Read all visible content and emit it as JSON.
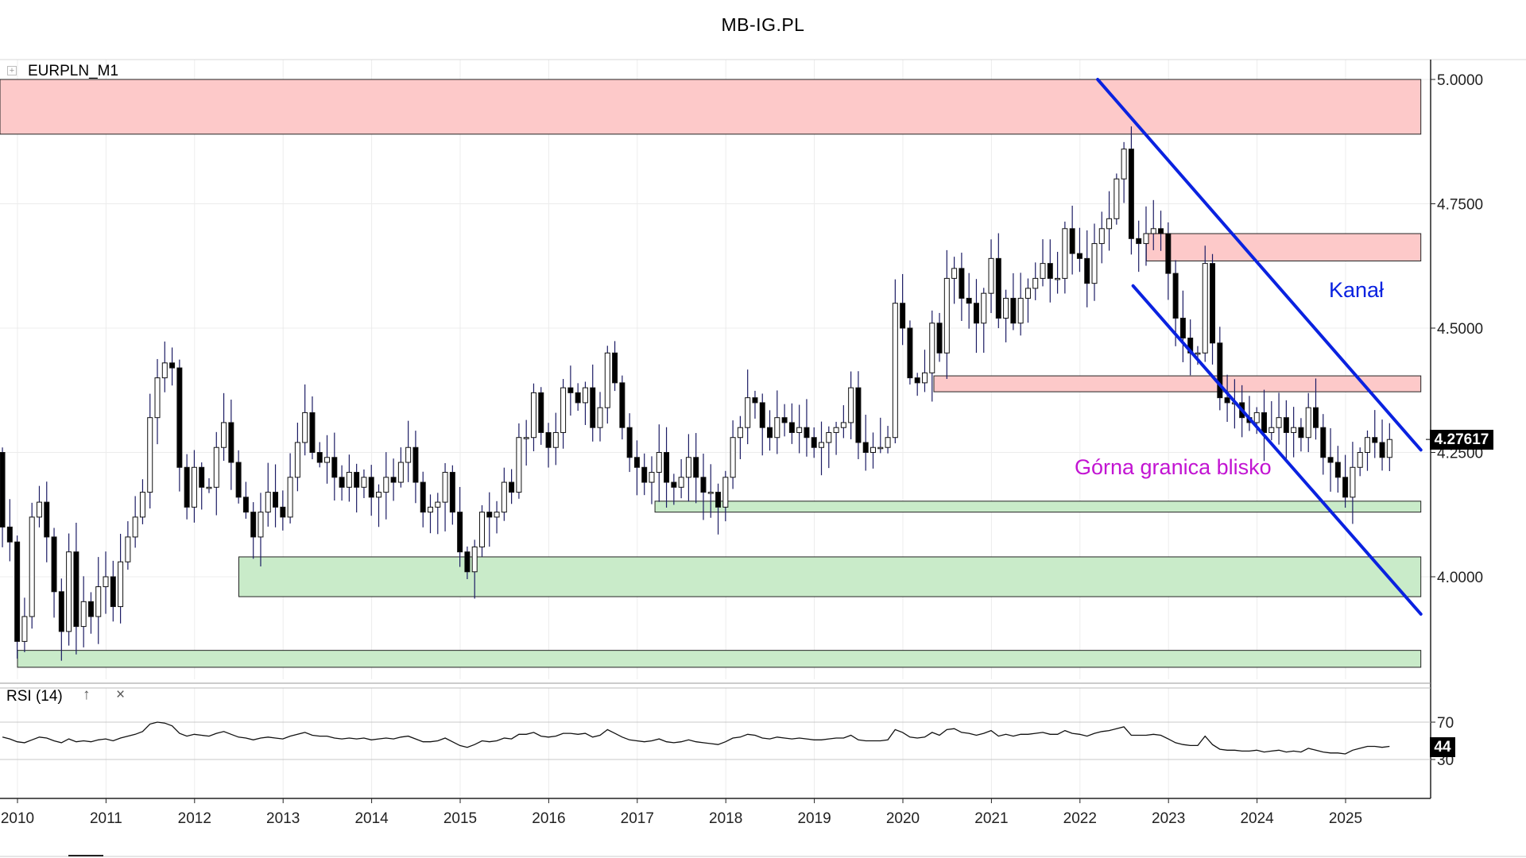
{
  "page_title": "MB-IG.PL",
  "symbol": {
    "label": "EURPLN_M1",
    "toggle_glyph": "+"
  },
  "current_price": "4.27617",
  "rsi": {
    "label": "RSI (14)",
    "up_glyph": "↑",
    "close_glyph": "×",
    "current_value": "44",
    "levels": [
      "70",
      "30"
    ]
  },
  "annotations": {
    "channel_label": "Kanał",
    "upper_bound_label": "Górna granica blisko"
  },
  "colors": {
    "resistance_zone": "#fdc9c9",
    "support_zone": "#c9ebc9",
    "channel_line": "#0a22e0",
    "upper_bound_text": "#c214d2",
    "candle_up": "#ffffff",
    "candle_down": "#000000",
    "wick": "#1c1c64"
  },
  "chart_data": {
    "type": "candlestick",
    "instrument": "EURPLN",
    "timeframe": "M1",
    "y_ticks": [
      "5.0000",
      "4.7500",
      "4.5000",
      "4.2500",
      "4.0000"
    ],
    "y_range": [
      3.8,
      5.04
    ],
    "x_ticks": [
      "2010",
      "2011",
      "2012",
      "2013",
      "2014",
      "2015",
      "2016",
      "2017",
      "2018",
      "2019",
      "2020",
      "2021",
      "2022",
      "2023",
      "2024",
      "2025"
    ],
    "x_range": [
      2009.88,
      2025.85
    ],
    "grid": true,
    "legend": "none",
    "resistance_zones": [
      {
        "from_x": 2009.8,
        "to_x": 2025.85,
        "low": 4.89,
        "high": 5.0
      },
      {
        "from_x": 2022.75,
        "to_x": 2025.85,
        "low": 4.635,
        "high": 4.69
      },
      {
        "from_x": 2020.35,
        "to_x": 2025.85,
        "low": 4.372,
        "high": 4.404
      }
    ],
    "support_zones": [
      {
        "from_x": 2017.2,
        "to_x": 2025.85,
        "low": 4.13,
        "high": 4.152
      },
      {
        "from_x": 2012.5,
        "to_x": 2025.85,
        "low": 3.96,
        "high": 4.04
      },
      {
        "from_x": 2010.0,
        "to_x": 2025.85,
        "low": 3.818,
        "high": 3.852
      }
    ],
    "channel_lines": [
      {
        "name": "upper",
        "points": [
          [
            2022.2,
            5.0
          ],
          [
            2025.85,
            4.255
          ]
        ]
      },
      {
        "name": "lower",
        "points": [
          [
            2022.6,
            4.585
          ],
          [
            2025.85,
            3.925
          ]
        ]
      }
    ],
    "monthly_close": [
      4.1,
      4.07,
      3.87,
      3.92,
      4.12,
      4.15,
      4.08,
      3.97,
      3.89,
      4.05,
      3.9,
      3.95,
      3.92,
      3.98,
      4.0,
      3.94,
      4.03,
      4.08,
      4.12,
      4.17,
      4.32,
      4.4,
      4.43,
      4.42,
      4.22,
      4.14,
      4.22,
      4.18,
      4.18,
      4.26,
      4.31,
      4.23,
      4.16,
      4.13,
      4.08,
      4.13,
      4.17,
      4.14,
      4.12,
      4.2,
      4.27,
      4.33,
      4.25,
      4.23,
      4.24,
      4.2,
      4.18,
      4.21,
      4.18,
      4.2,
      4.16,
      4.17,
      4.2,
      4.19,
      4.23,
      4.26,
      4.19,
      4.13,
      4.14,
      4.15,
      4.21,
      4.13,
      4.05,
      4.01,
      4.06,
      4.13,
      4.12,
      4.13,
      4.19,
      4.17,
      4.28,
      4.28,
      4.37,
      4.29,
      4.26,
      4.29,
      4.38,
      4.37,
      4.35,
      4.38,
      4.3,
      4.34,
      4.45,
      4.39,
      4.3,
      4.24,
      4.22,
      4.19,
      4.21,
      4.25,
      4.19,
      4.18,
      4.2,
      4.24,
      4.2,
      4.17,
      4.17,
      4.14,
      4.2,
      4.28,
      4.3,
      4.36,
      4.35,
      4.3,
      4.28,
      4.32,
      4.31,
      4.29,
      4.3,
      4.28,
      4.26,
      4.27,
      4.29,
      4.3,
      4.31,
      4.38,
      4.27,
      4.25,
      4.26,
      4.26,
      4.28,
      4.55,
      4.5,
      4.4,
      4.39,
      4.41,
      4.51,
      4.45,
      4.6,
      4.62,
      4.56,
      4.55,
      4.51,
      4.57,
      4.64,
      4.52,
      4.56,
      4.51,
      4.56,
      4.58,
      4.6,
      4.63,
      4.6,
      4.6,
      4.7,
      4.65,
      4.64,
      4.59,
      4.67,
      4.7,
      4.72,
      4.8,
      4.86,
      4.68,
      4.67,
      4.69,
      4.7,
      4.69,
      4.61,
      4.52,
      4.48,
      4.45,
      4.45,
      4.63,
      4.47,
      4.36,
      4.35,
      4.35,
      4.32,
      4.31,
      4.33,
      4.29,
      4.3,
      4.32,
      4.29,
      4.3,
      4.28,
      4.34,
      4.3,
      4.24,
      4.23,
      4.2,
      4.16,
      4.22,
      4.25,
      4.28,
      4.27,
      4.24,
      4.276
    ],
    "rsi_series": [
      54,
      52,
      49,
      48,
      51,
      54,
      53,
      50,
      48,
      52,
      49,
      50,
      49,
      51,
      52,
      50,
      53,
      55,
      57,
      60,
      68,
      70,
      69,
      66,
      58,
      55,
      57,
      56,
      55,
      58,
      60,
      57,
      54,
      53,
      51,
      53,
      54,
      53,
      52,
      55,
      57,
      59,
      56,
      55,
      55,
      53,
      52,
      53,
      52,
      53,
      51,
      52,
      53,
      52,
      54,
      55,
      52,
      49,
      49,
      50,
      53,
      49,
      45,
      43,
      46,
      50,
      49,
      50,
      53,
      52,
      57,
      57,
      59,
      55,
      54,
      55,
      58,
      58,
      57,
      58,
      54,
      56,
      62,
      58,
      54,
      51,
      50,
      49,
      50,
      52,
      49,
      48,
      49,
      51,
      49,
      48,
      47,
      46,
      49,
      53,
      54,
      57,
      56,
      53,
      52,
      54,
      53,
      52,
      53,
      52,
      51,
      51,
      52,
      53,
      53,
      56,
      51,
      50,
      50,
      50,
      51,
      62,
      59,
      54,
      53,
      54,
      59,
      56,
      62,
      63,
      59,
      58,
      56,
      58,
      61,
      55,
      57,
      55,
      57,
      57,
      58,
      59,
      57,
      57,
      61,
      58,
      57,
      55,
      58,
      60,
      61,
      63,
      65,
      56,
      56,
      56,
      57,
      56,
      52,
      48,
      46,
      45,
      45,
      55,
      46,
      41,
      40,
      40,
      39,
      39,
      40,
      38,
      39,
      40,
      38,
      39,
      38,
      42,
      40,
      38,
      37,
      37,
      36,
      40,
      42,
      44,
      44,
      43,
      44
    ]
  }
}
